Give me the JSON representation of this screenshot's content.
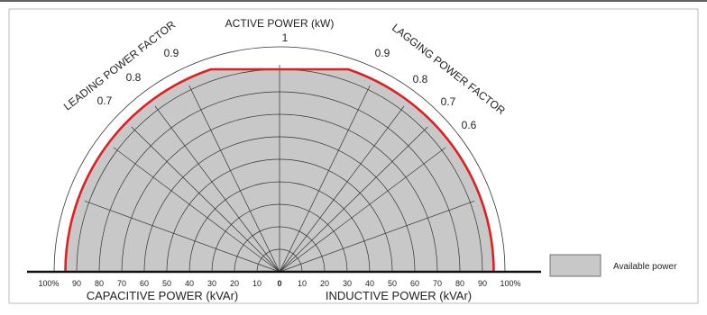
{
  "top_axis": {
    "label": "ACTIVE POWER (kW)",
    "max_label": "1"
  },
  "leading": {
    "label": "LEADING POWER FACTOR",
    "pf_labels": [
      "0.9",
      "0.8",
      "0.7"
    ]
  },
  "lagging": {
    "label": "LAGGING POWER FACTOR",
    "pf_labels": [
      "0.9",
      "0.8",
      "0.7",
      "0.6"
    ]
  },
  "bottom_axis": {
    "left_label": "CAPACITIVE POWER (kVAr)",
    "right_label": "INDUCTIVE POWER (kVAr)",
    "left_ticks": [
      "100%",
      "90",
      "80",
      "70",
      "60",
      "50",
      "40",
      "30",
      "20",
      "10"
    ],
    "zero": "0",
    "right_ticks": [
      "10",
      "20",
      "30",
      "40",
      "50",
      "60",
      "70",
      "80",
      "90",
      "100%"
    ]
  },
  "legend": {
    "label": "Available power"
  },
  "colors": {
    "area_fill": "#c8c8c8",
    "limit_line": "#e02020",
    "grid": "#333333"
  }
}
